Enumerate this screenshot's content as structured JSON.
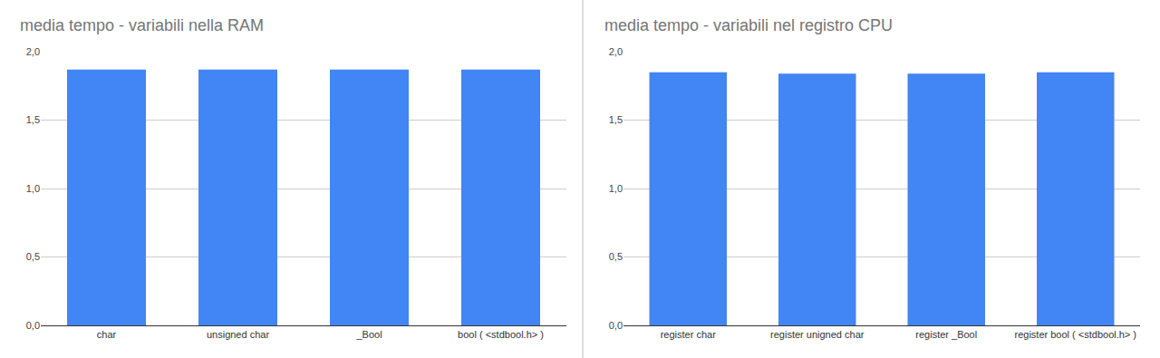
{
  "chart_data": [
    {
      "type": "bar",
      "title": "media tempo - variabili nella RAM",
      "categories": [
        "char",
        "unsigned char",
        "_Bool",
        "bool ( <stdbool.h> )"
      ],
      "values": [
        1.87,
        1.87,
        1.87,
        1.87
      ],
      "color": "#4285f4",
      "ylim": [
        0,
        2
      ],
      "yticks": [
        {
          "value": 0,
          "label": "0,0"
        },
        {
          "value": 0.5,
          "label": "0,5"
        },
        {
          "value": 1,
          "label": "1,0"
        },
        {
          "value": 1.5,
          "label": "1,5"
        },
        {
          "value": 2,
          "label": "2,0"
        }
      ],
      "grid": true
    },
    {
      "type": "bar",
      "title": "media tempo - variabili nel registro CPU",
      "categories": [
        "register char",
        "register unigned char",
        "register _Bool",
        "register bool ( <stdbool.h> )"
      ],
      "values": [
        1.85,
        1.84,
        1.84,
        1.85
      ],
      "color": "#4285f4",
      "ylim": [
        0,
        2
      ],
      "yticks": [
        {
          "value": 0,
          "label": "0,0"
        },
        {
          "value": 0.5,
          "label": "0,5"
        },
        {
          "value": 1,
          "label": "1,0"
        },
        {
          "value": 1.5,
          "label": "1,5"
        },
        {
          "value": 2,
          "label": "2,0"
        }
      ],
      "grid": true
    }
  ]
}
